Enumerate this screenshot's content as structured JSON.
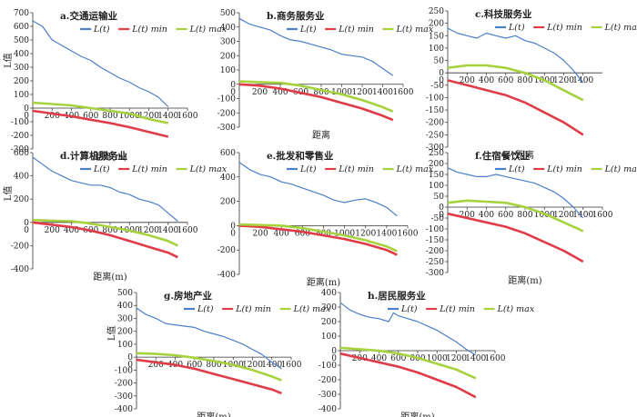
{
  "legend_labels": [
    "L(t)",
    "L(t) min",
    "L(t) max"
  ],
  "colors": {
    "obs": "#4a7fc9",
    "min": "#e03c48",
    "max": "#a6d23e"
  },
  "chart_data": [
    {
      "type": "line",
      "title": "a.交通运输业",
      "xlabel": "距离(m)",
      "ylabel": "L值",
      "xlim": [
        0,
        1600
      ],
      "ylim": [
        -300,
        700
      ],
      "xticks": [
        200,
        400,
        600,
        800,
        1000,
        1200,
        1400,
        1600
      ],
      "yticks": [
        -300,
        -200,
        -100,
        0,
        100,
        200,
        300,
        400,
        500,
        600,
        700
      ],
      "series": [
        {
          "name": "L(t)",
          "x": [
            0,
            100,
            200,
            300,
            400,
            500,
            600,
            700,
            800,
            900,
            1000,
            1100,
            1200,
            1300,
            1400
          ],
          "y": [
            640,
            600,
            500,
            460,
            420,
            380,
            350,
            300,
            260,
            220,
            190,
            150,
            120,
            80,
            10
          ]
        },
        {
          "name": "L(t) min",
          "x": [
            0,
            200,
            400,
            600,
            800,
            1000,
            1200,
            1400
          ],
          "y": [
            -20,
            -40,
            -60,
            -85,
            -110,
            -140,
            -175,
            -210
          ]
        },
        {
          "name": "L(t) max",
          "x": [
            0,
            200,
            400,
            600,
            800,
            1000,
            1200,
            1400
          ],
          "y": [
            40,
            30,
            20,
            0,
            -20,
            -40,
            -80,
            -110
          ]
        }
      ]
    },
    {
      "type": "line",
      "title": "b.商务服务业",
      "xlabel": "距离",
      "ylabel": "",
      "xlim": [
        0,
        1600
      ],
      "ylim": [
        -300,
        500
      ],
      "xticks": [
        200,
        400,
        600,
        800,
        1000,
        1200,
        1400,
        1600
      ],
      "yticks": [
        -300,
        -200,
        -100,
        0,
        100,
        200,
        300,
        400,
        500
      ],
      "series": [
        {
          "name": "L(t)",
          "x": [
            0,
            100,
            200,
            300,
            400,
            500,
            600,
            700,
            800,
            900,
            1000,
            1100,
            1200,
            1300,
            1400,
            1500
          ],
          "y": [
            460,
            420,
            400,
            380,
            340,
            310,
            300,
            280,
            260,
            240,
            210,
            200,
            190,
            160,
            110,
            60
          ]
        },
        {
          "name": "L(t) min",
          "x": [
            0,
            200,
            400,
            600,
            800,
            1000,
            1200,
            1400,
            1500
          ],
          "y": [
            0,
            -10,
            -30,
            -60,
            -90,
            -130,
            -170,
            -220,
            -250
          ]
        },
        {
          "name": "L(t) max",
          "x": [
            0,
            200,
            400,
            600,
            800,
            1000,
            1200,
            1400,
            1500
          ],
          "y": [
            20,
            15,
            10,
            -10,
            -40,
            -70,
            -110,
            -160,
            -190
          ]
        }
      ]
    },
    {
      "type": "line",
      "title": "c.科技服务业",
      "xlabel": "距离",
      "ylabel": "",
      "xlim": [
        0,
        1600
      ],
      "ylim": [
        -300,
        250
      ],
      "xticks": [
        200,
        400,
        600,
        800,
        1000,
        1200,
        1400
      ],
      "yticks": [
        -300,
        -250,
        -200,
        -150,
        -100,
        -50,
        0,
        50,
        100,
        150,
        200,
        250
      ],
      "series": [
        {
          "name": "L(t)",
          "x": [
            0,
            100,
            200,
            300,
            400,
            500,
            600,
            700,
            800,
            900,
            1000,
            1100,
            1200,
            1300,
            1400
          ],
          "y": [
            180,
            160,
            150,
            140,
            160,
            150,
            140,
            150,
            130,
            120,
            100,
            80,
            50,
            10,
            -40
          ]
        },
        {
          "name": "L(t) min",
          "x": [
            0,
            200,
            400,
            600,
            800,
            1000,
            1200,
            1400
          ],
          "y": [
            -30,
            -50,
            -70,
            -90,
            -120,
            -160,
            -200,
            -250
          ]
        },
        {
          "name": "L(t) max",
          "x": [
            0,
            200,
            400,
            600,
            800,
            1000,
            1200,
            1400
          ],
          "y": [
            20,
            30,
            30,
            20,
            0,
            -30,
            -70,
            -110
          ]
        }
      ]
    },
    {
      "type": "line",
      "title": "d.计算机服务业",
      "xlabel": "距离(m)",
      "ylabel": "L值",
      "xlim": [
        0,
        1600
      ],
      "ylim": [
        -400,
        600
      ],
      "xticks": [
        200,
        400,
        600,
        800,
        1000,
        1200,
        1400,
        1600
      ],
      "yticks": [
        -400,
        -200,
        0,
        200,
        400,
        600
      ],
      "series": [
        {
          "name": "L(t)",
          "x": [
            0,
            100,
            200,
            300,
            400,
            500,
            600,
            700,
            800,
            900,
            1000,
            1100,
            1200,
            1300,
            1400,
            1500
          ],
          "y": [
            560,
            500,
            440,
            400,
            360,
            340,
            320,
            320,
            300,
            260,
            240,
            200,
            180,
            150,
            80,
            10
          ]
        },
        {
          "name": "L(t) min",
          "x": [
            0,
            200,
            400,
            600,
            800,
            1000,
            1200,
            1400,
            1500
          ],
          "y": [
            0,
            -20,
            -40,
            -70,
            -110,
            -160,
            -210,
            -260,
            -300
          ]
        },
        {
          "name": "L(t) max",
          "x": [
            0,
            200,
            400,
            600,
            800,
            1000,
            1200,
            1400,
            1500
          ],
          "y": [
            20,
            15,
            10,
            -10,
            -40,
            -70,
            -110,
            -160,
            -200
          ]
        }
      ]
    },
    {
      "type": "line",
      "title": "e.批发和零售业",
      "xlabel": "距离(m)",
      "ylabel": "",
      "xlim": [
        0,
        1600
      ],
      "ylim": [
        -400,
        600
      ],
      "xticks": [
        200,
        400,
        600,
        800,
        1000,
        1200,
        1400,
        1600
      ],
      "yticks": [
        -400,
        -200,
        0,
        200,
        400,
        600
      ],
      "series": [
        {
          "name": "L(t)",
          "x": [
            0,
            100,
            200,
            300,
            400,
            500,
            600,
            700,
            800,
            900,
            1000,
            1100,
            1200,
            1300,
            1400,
            1500
          ],
          "y": [
            520,
            460,
            420,
            400,
            360,
            340,
            310,
            280,
            250,
            210,
            190,
            210,
            220,
            190,
            150,
            80
          ]
        },
        {
          "name": "L(t) min",
          "x": [
            0,
            200,
            400,
            600,
            800,
            1000,
            1200,
            1400,
            1500
          ],
          "y": [
            0,
            -10,
            -30,
            -50,
            -80,
            -110,
            -150,
            -200,
            -240
          ]
        },
        {
          "name": "L(t) max",
          "x": [
            0,
            200,
            400,
            600,
            800,
            1000,
            1200,
            1400,
            1500
          ],
          "y": [
            10,
            5,
            0,
            -20,
            -50,
            -80,
            -120,
            -170,
            -210
          ]
        }
      ]
    },
    {
      "type": "line",
      "title": "f.住宿餐饮业",
      "xlabel": "距离(m)",
      "ylabel": "",
      "xlim": [
        0,
        1600
      ],
      "ylim": [
        -300,
        250
      ],
      "xticks": [
        200,
        400,
        600,
        800,
        1000,
        1200,
        1400,
        1600
      ],
      "yticks": [
        -300,
        -250,
        -200,
        -150,
        -100,
        -50,
        0,
        50,
        100,
        150,
        200,
        250
      ],
      "series": [
        {
          "name": "L(t)",
          "x": [
            0,
            100,
            200,
            300,
            400,
            500,
            600,
            700,
            800,
            900,
            1000,
            1100,
            1200,
            1300,
            1400
          ],
          "y": [
            180,
            160,
            150,
            140,
            140,
            150,
            140,
            130,
            120,
            110,
            90,
            70,
            40,
            0,
            -50
          ]
        },
        {
          "name": "L(t) min",
          "x": [
            0,
            200,
            400,
            600,
            800,
            1000,
            1200,
            1400
          ],
          "y": [
            -30,
            -50,
            -70,
            -90,
            -120,
            -160,
            -200,
            -250
          ]
        },
        {
          "name": "L(t) max",
          "x": [
            0,
            200,
            400,
            600,
            800,
            1000,
            1200,
            1400
          ],
          "y": [
            20,
            30,
            25,
            20,
            0,
            -30,
            -70,
            -110
          ]
        }
      ]
    },
    {
      "type": "line",
      "title": "g.房地产业",
      "xlabel": "距离(m)",
      "ylabel": "L值",
      "xlim": [
        0,
        1600
      ],
      "ylim": [
        -400,
        500
      ],
      "xticks": [
        200,
        400,
        600,
        800,
        1000,
        1200,
        1400,
        1600
      ],
      "yticks": [
        -400,
        -300,
        -200,
        -100,
        0,
        100,
        200,
        300,
        400,
        500
      ],
      "series": [
        {
          "name": "L(t)",
          "x": [
            0,
            100,
            200,
            300,
            400,
            500,
            600,
            700,
            800,
            900,
            1000,
            1100,
            1200,
            1300,
            1400,
            1500
          ],
          "y": [
            380,
            330,
            300,
            260,
            250,
            240,
            230,
            200,
            180,
            160,
            130,
            100,
            60,
            20,
            -40,
            -90
          ]
        },
        {
          "name": "L(t) min",
          "x": [
            0,
            200,
            400,
            600,
            800,
            1000,
            1200,
            1400,
            1500
          ],
          "y": [
            -20,
            -40,
            -60,
            -90,
            -130,
            -170,
            -210,
            -250,
            -280
          ]
        },
        {
          "name": "L(t) max",
          "x": [
            0,
            200,
            400,
            600,
            800,
            1000,
            1200,
            1400,
            1500
          ],
          "y": [
            30,
            25,
            15,
            -5,
            -30,
            -60,
            -100,
            -150,
            -180
          ]
        }
      ]
    },
    {
      "type": "line",
      "title": "h.居民服务业",
      "xlabel": "距离(m)",
      "ylabel": "",
      "xlim": [
        0,
        1600
      ],
      "ylim": [
        -400,
        400
      ],
      "xticks": [
        200,
        400,
        600,
        800,
        1000,
        1200,
        1400,
        1600
      ],
      "yticks": [
        -400,
        -300,
        -200,
        -100,
        0,
        100,
        200,
        300,
        400
      ],
      "series": [
        {
          "name": "L(t)",
          "x": [
            0,
            100,
            200,
            300,
            400,
            500,
            550,
            600,
            700,
            800,
            900,
            1000,
            1100,
            1200,
            1300,
            1400
          ],
          "y": [
            330,
            280,
            250,
            230,
            220,
            200,
            260,
            240,
            220,
            200,
            170,
            140,
            100,
            60,
            10,
            -30
          ]
        },
        {
          "name": "L(t) min",
          "x": [
            0,
            200,
            400,
            600,
            800,
            1000,
            1200,
            1400
          ],
          "y": [
            -20,
            -50,
            -80,
            -110,
            -150,
            -200,
            -250,
            -320
          ]
        },
        {
          "name": "L(t) max",
          "x": [
            0,
            200,
            400,
            600,
            800,
            1000,
            1200,
            1400
          ],
          "y": [
            20,
            10,
            0,
            -20,
            -50,
            -90,
            -130,
            -190
          ]
        }
      ]
    }
  ]
}
